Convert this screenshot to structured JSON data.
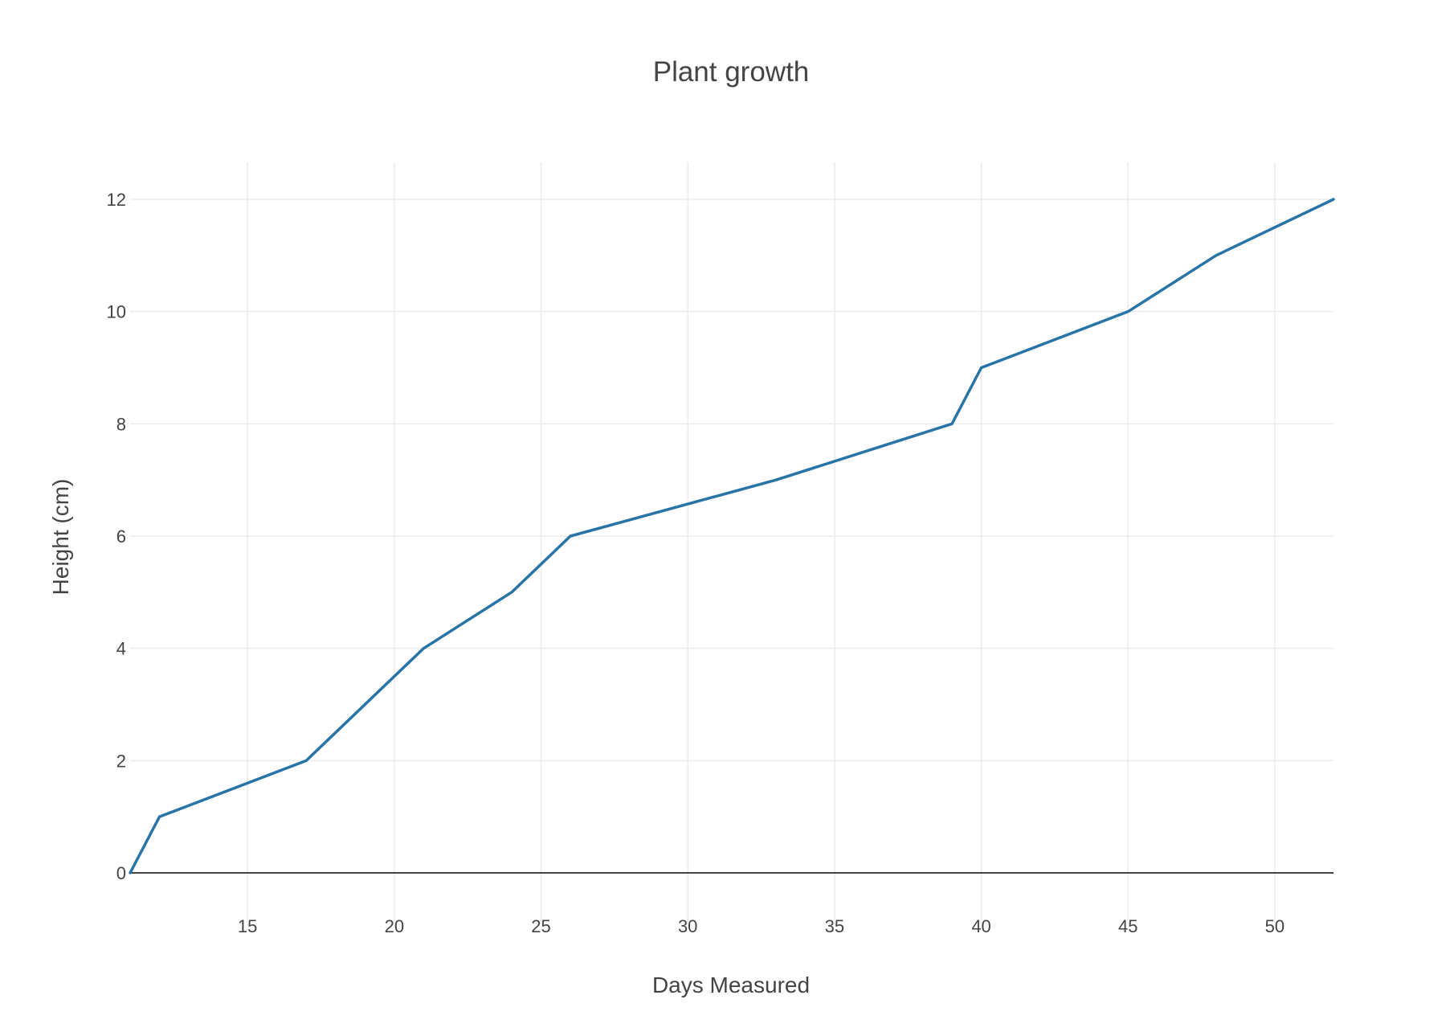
{
  "chart_data": {
    "type": "line",
    "title": "Plant growth",
    "xlabel": "Days Measured",
    "ylabel": "Height (cm)",
    "xlim": [
      11,
      52
    ],
    "ylim": [
      0,
      12
    ],
    "x_ticks": [
      15,
      20,
      25,
      30,
      35,
      40,
      45,
      50
    ],
    "y_ticks": [
      0,
      2,
      4,
      6,
      8,
      10,
      12
    ],
    "grid": true,
    "legend": "none",
    "series": [
      {
        "color": "#2874a6",
        "x": [
          11,
          12,
          17,
          21,
          24,
          26,
          33,
          39,
          40,
          45,
          48,
          52
        ],
        "y": [
          0,
          1,
          2,
          4,
          5,
          6,
          7,
          8,
          9,
          10,
          11,
          12
        ]
      }
    ]
  },
  "style": {
    "grid_color": "#ebebeb",
    "zero_line_color": "#444444",
    "text_color": "#444444"
  }
}
